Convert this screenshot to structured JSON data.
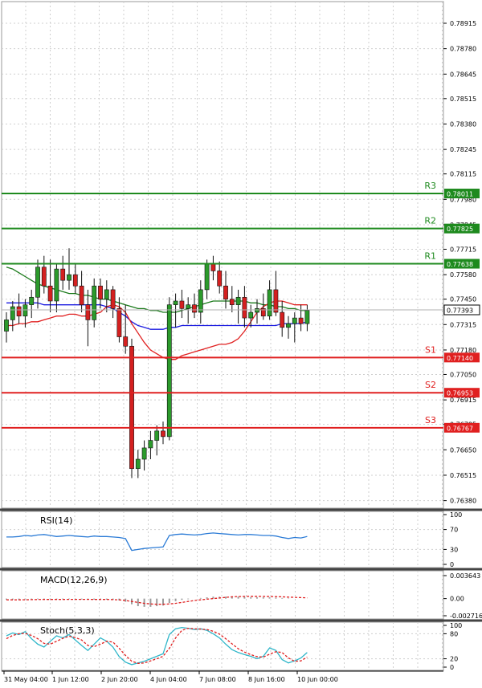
{
  "chart_data": [
    {
      "type": "candlestick",
      "panel": "price",
      "y_ticks": [
        "0.78915",
        "0.78780",
        "0.78645",
        "0.78515",
        "0.78380",
        "0.78245",
        "0.78115",
        "0.77980",
        "0.77845",
        "0.77715",
        "0.77580",
        "0.77450",
        "0.77315",
        "0.77180",
        "0.77050",
        "0.76915",
        "0.76785",
        "0.76650",
        "0.76515",
        "0.76380"
      ],
      "ylim": [
        0.7634,
        0.7903
      ],
      "x_ticks": [
        "31 May 04:00",
        "1 Jun 12:00",
        "2 Jun 20:00",
        "4 Jun 04:00",
        "7 Jun 08:00",
        "8 Jun 16:00",
        "10 Jun 00:00"
      ],
      "current_price": "0.77393",
      "current_price_value": 0.77393,
      "levels": [
        {
          "name": "R3",
          "label": "0.78011",
          "value": 0.78011,
          "color": "#1e8a1e"
        },
        {
          "name": "R2",
          "label": "0.77825",
          "value": 0.77825,
          "color": "#1e8a1e"
        },
        {
          "name": "R1",
          "label": "0.77638",
          "value": 0.77638,
          "color": "#1e8a1e"
        },
        {
          "name": "S1",
          "label": "0.77140",
          "value": 0.7714,
          "color": "#e02020"
        },
        {
          "name": "S2",
          "label": "0.76953",
          "value": 0.76953,
          "color": "#e02020"
        },
        {
          "name": "S3",
          "label": "0.76767",
          "value": 0.76767,
          "color": "#e02020"
        }
      ],
      "candles": [
        [
          0.7728,
          0.7738,
          0.7722,
          0.7734
        ],
        [
          0.7734,
          0.7744,
          0.7728,
          0.7741
        ],
        [
          0.7741,
          0.7748,
          0.7732,
          0.7736
        ],
        [
          0.7736,
          0.7745,
          0.773,
          0.7742
        ],
        [
          0.7742,
          0.775,
          0.7735,
          0.7746
        ],
        [
          0.7746,
          0.7766,
          0.774,
          0.7762
        ],
        [
          0.7762,
          0.7768,
          0.7748,
          0.7752
        ],
        [
          0.7752,
          0.7766,
          0.7738,
          0.7744
        ],
        [
          0.7744,
          0.7764,
          0.7738,
          0.7761
        ],
        [
          0.7761,
          0.7768,
          0.775,
          0.7755
        ],
        [
          0.7755,
          0.7772,
          0.775,
          0.7758
        ],
        [
          0.7758,
          0.7764,
          0.7748,
          0.7752
        ],
        [
          0.7752,
          0.776,
          0.7738,
          0.7742
        ],
        [
          0.7742,
          0.775,
          0.772,
          0.7734
        ],
        [
          0.7734,
          0.7756,
          0.773,
          0.7752
        ],
        [
          0.7752,
          0.7756,
          0.774,
          0.7745
        ],
        [
          0.7745,
          0.7755,
          0.7738,
          0.775
        ],
        [
          0.775,
          0.7752,
          0.7735,
          0.774
        ],
        [
          0.774,
          0.7746,
          0.7722,
          0.7725
        ],
        [
          0.7725,
          0.7742,
          0.7716,
          0.772
        ],
        [
          0.772,
          0.7724,
          0.765,
          0.7655
        ],
        [
          0.7655,
          0.7665,
          0.765,
          0.766
        ],
        [
          0.766,
          0.767,
          0.7654,
          0.7666
        ],
        [
          0.7666,
          0.7675,
          0.766,
          0.767
        ],
        [
          0.767,
          0.7678,
          0.7662,
          0.7675
        ],
        [
          0.7675,
          0.768,
          0.7668,
          0.7672
        ],
        [
          0.7672,
          0.7746,
          0.767,
          0.7742
        ],
        [
          0.7742,
          0.7748,
          0.773,
          0.7744
        ],
        [
          0.7744,
          0.775,
          0.7735,
          0.774
        ],
        [
          0.774,
          0.7746,
          0.7732,
          0.7742
        ],
        [
          0.7742,
          0.7748,
          0.7735,
          0.7738
        ],
        [
          0.7738,
          0.7755,
          0.7732,
          0.775
        ],
        [
          0.775,
          0.7766,
          0.7745,
          0.7764
        ],
        [
          0.7764,
          0.7768,
          0.7755,
          0.776
        ],
        [
          0.776,
          0.7765,
          0.7748,
          0.7752
        ],
        [
          0.7752,
          0.776,
          0.774,
          0.7745
        ],
        [
          0.7745,
          0.7752,
          0.7738,
          0.7742
        ],
        [
          0.7742,
          0.775,
          0.7732,
          0.7746
        ],
        [
          0.7746,
          0.7752,
          0.773,
          0.7735
        ],
        [
          0.7735,
          0.7742,
          0.773,
          0.7738
        ],
        [
          0.7738,
          0.7745,
          0.7732,
          0.774
        ],
        [
          0.774,
          0.7748,
          0.7734,
          0.7736
        ],
        [
          0.7736,
          0.7755,
          0.7734,
          0.775
        ],
        [
          0.775,
          0.776,
          0.7736,
          0.7738
        ],
        [
          0.7738,
          0.7744,
          0.7725,
          0.773
        ],
        [
          0.773,
          0.7736,
          0.7724,
          0.7732
        ],
        [
          0.7732,
          0.7738,
          0.7722,
          0.7735
        ],
        [
          0.7735,
          0.7742,
          0.7728,
          0.7732
        ],
        [
          0.7732,
          0.7742,
          0.7728,
          0.7739
        ]
      ],
      "series": [
        {
          "color": "#1a7a1a",
          "values": [
            0.7762,
            0.7761,
            0.7759,
            0.7757,
            0.7755,
            0.7753,
            0.7752,
            0.7751,
            0.775,
            0.7749,
            0.7748,
            0.7748,
            0.7747,
            0.7747,
            0.7746,
            0.7745,
            0.7745,
            0.7744,
            0.7743,
            0.7742,
            0.7741,
            0.774,
            0.774,
            0.7739,
            0.7739,
            0.7738,
            0.7738,
            0.7738,
            0.7739,
            0.774,
            0.7741,
            0.7742,
            0.7743,
            0.7744,
            0.7744,
            0.7744,
            0.7744,
            0.7744,
            0.7744,
            0.7743,
            0.7743,
            0.7742,
            0.7742,
            0.7741,
            0.7741,
            0.774,
            0.774,
            0.7739,
            0.7739
          ]
        },
        {
          "color": "#1a1ae0",
          "values": [
            0.7743,
            0.7743,
            0.7743,
            0.7743,
            0.7743,
            0.7743,
            0.7742,
            0.7742,
            0.7742,
            0.7742,
            0.7742,
            0.7742,
            0.7742,
            0.7742,
            0.7742,
            0.7742,
            0.7741,
            0.774,
            0.7738,
            0.7736,
            0.7733,
            0.7731,
            0.773,
            0.7729,
            0.7729,
            0.7729,
            0.773,
            0.773,
            0.7731,
            0.7731,
            0.7731,
            0.7731,
            0.7731,
            0.7731,
            0.7731,
            0.7731,
            0.7731,
            0.7731,
            0.7731,
            0.7731,
            0.7731,
            0.7731,
            0.7731,
            0.7731,
            0.7732,
            0.7732,
            0.7732,
            0.7732,
            0.7733
          ]
        },
        {
          "color": "#e02020",
          "values": [
            0.7731,
            0.7731,
            0.7732,
            0.7732,
            0.7733,
            0.7733,
            0.7734,
            0.7735,
            0.7736,
            0.7736,
            0.7737,
            0.7737,
            0.7736,
            0.7736,
            0.7737,
            0.7738,
            0.7741,
            0.7742,
            0.7741,
            0.7738,
            0.7732,
            0.7727,
            0.7722,
            0.7718,
            0.7716,
            0.7714,
            0.7713,
            0.7713,
            0.7715,
            0.7716,
            0.7717,
            0.7718,
            0.7719,
            0.772,
            0.7721,
            0.7721,
            0.7722,
            0.7724,
            0.7728,
            0.7733,
            0.7738,
            0.7741,
            0.7743,
            0.7744,
            0.7744,
            0.7743,
            0.7742,
            0.7742,
            0.7742
          ]
        }
      ]
    },
    {
      "type": "line",
      "panel": "rsi",
      "title": "RSI(14)",
      "y_ticks": [
        "100",
        "70",
        "30",
        "0"
      ],
      "ylim": [
        0,
        100
      ],
      "series": [
        {
          "color": "#2b7bd6",
          "values": [
            55,
            55,
            56,
            58,
            57,
            59,
            60,
            58,
            56,
            57,
            58,
            57,
            56,
            55,
            57,
            56,
            56,
            55,
            54,
            52,
            28,
            30,
            32,
            33,
            34,
            35,
            58,
            60,
            61,
            60,
            59,
            60,
            62,
            63,
            62,
            61,
            60,
            59,
            60,
            60,
            59,
            58,
            58,
            57,
            54,
            52,
            54,
            53,
            56
          ]
        }
      ]
    },
    {
      "type": "bar",
      "panel": "macd",
      "title": "MACD(12,26,9)",
      "y_ticks": [
        "0.003643",
        "0.00",
        "-0.002716"
      ],
      "ylim": [
        -0.002716,
        0.003643
      ],
      "histogram": [
        -0.00015,
        -0.00014,
        -0.00012,
        -0.0001,
        -0.0001,
        -8e-05,
        -8e-05,
        -0.0001,
        -0.0001,
        -9e-05,
        -8e-05,
        -8e-05,
        -0.00012,
        -0.00015,
        -0.00015,
        -0.00016,
        -0.00016,
        -0.0002,
        -0.0003,
        -0.0005,
        -0.0009,
        -0.0012,
        -0.0013,
        -0.0013,
        -0.0012,
        -0.0011,
        -0.0007,
        -0.0004,
        -0.0002,
        -0.0001,
        0.0,
        0.0001,
        0.0002,
        0.0003,
        0.0003,
        0.0003,
        0.0003,
        0.0003,
        0.00025,
        0.0002,
        0.0002,
        0.0002,
        0.0002,
        0.00015,
        0.0001,
        5e-05,
        0.0,
        0.0,
        0.0
      ],
      "signal": [
        -0.0002,
        -0.0002,
        -0.0002,
        -0.00018,
        -0.00016,
        -0.00015,
        -0.00014,
        -0.00013,
        -0.00013,
        -0.00013,
        -0.00012,
        -0.00012,
        -0.00012,
        -0.00012,
        -0.00013,
        -0.00013,
        -0.00014,
        -0.00016,
        -0.0002,
        -0.0003,
        -0.00045,
        -0.0006,
        -0.00075,
        -0.00085,
        -0.0009,
        -0.0009,
        -0.00085,
        -0.00075,
        -0.0006,
        -0.00045,
        -0.0003,
        -0.0002,
        -0.0001,
        0.0,
        0.0001,
        0.0002,
        0.00028,
        0.00032,
        0.00035,
        0.00036,
        0.00036,
        0.00035,
        0.00033,
        0.00031,
        0.00028,
        0.00024,
        0.0002,
        0.00016,
        0.00012
      ],
      "signal_color": "#e02020"
    },
    {
      "type": "line",
      "panel": "stoch",
      "title": "Stoch(5,3,3)",
      "y_ticks": [
        "100",
        "80",
        "20",
        "0"
      ],
      "ylim": [
        0,
        100
      ],
      "series": [
        {
          "color": "#2fb6c9",
          "values": [
            75,
            82,
            78,
            85,
            68,
            55,
            48,
            62,
            75,
            70,
            78,
            65,
            52,
            40,
            55,
            70,
            62,
            48,
            25,
            12,
            6,
            10,
            14,
            20,
            26,
            32,
            78,
            92,
            95,
            93,
            90,
            92,
            88,
            80,
            70,
            55,
            42,
            35,
            30,
            26,
            20,
            26,
            46,
            40,
            18,
            10,
            15,
            22,
            35
          ]
        },
        {
          "color": "#e02020",
          "values": [
            68,
            76,
            80,
            81,
            76,
            68,
            57,
            55,
            62,
            69,
            74,
            71,
            65,
            52,
            49,
            55,
            62,
            60,
            45,
            28,
            14,
            9,
            10,
            15,
            20,
            26,
            45,
            70,
            88,
            93,
            92,
            91,
            90,
            86,
            79,
            68,
            56,
            44,
            36,
            30,
            25,
            24,
            31,
            37,
            35,
            22,
            14,
            15,
            24
          ]
        }
      ]
    }
  ]
}
